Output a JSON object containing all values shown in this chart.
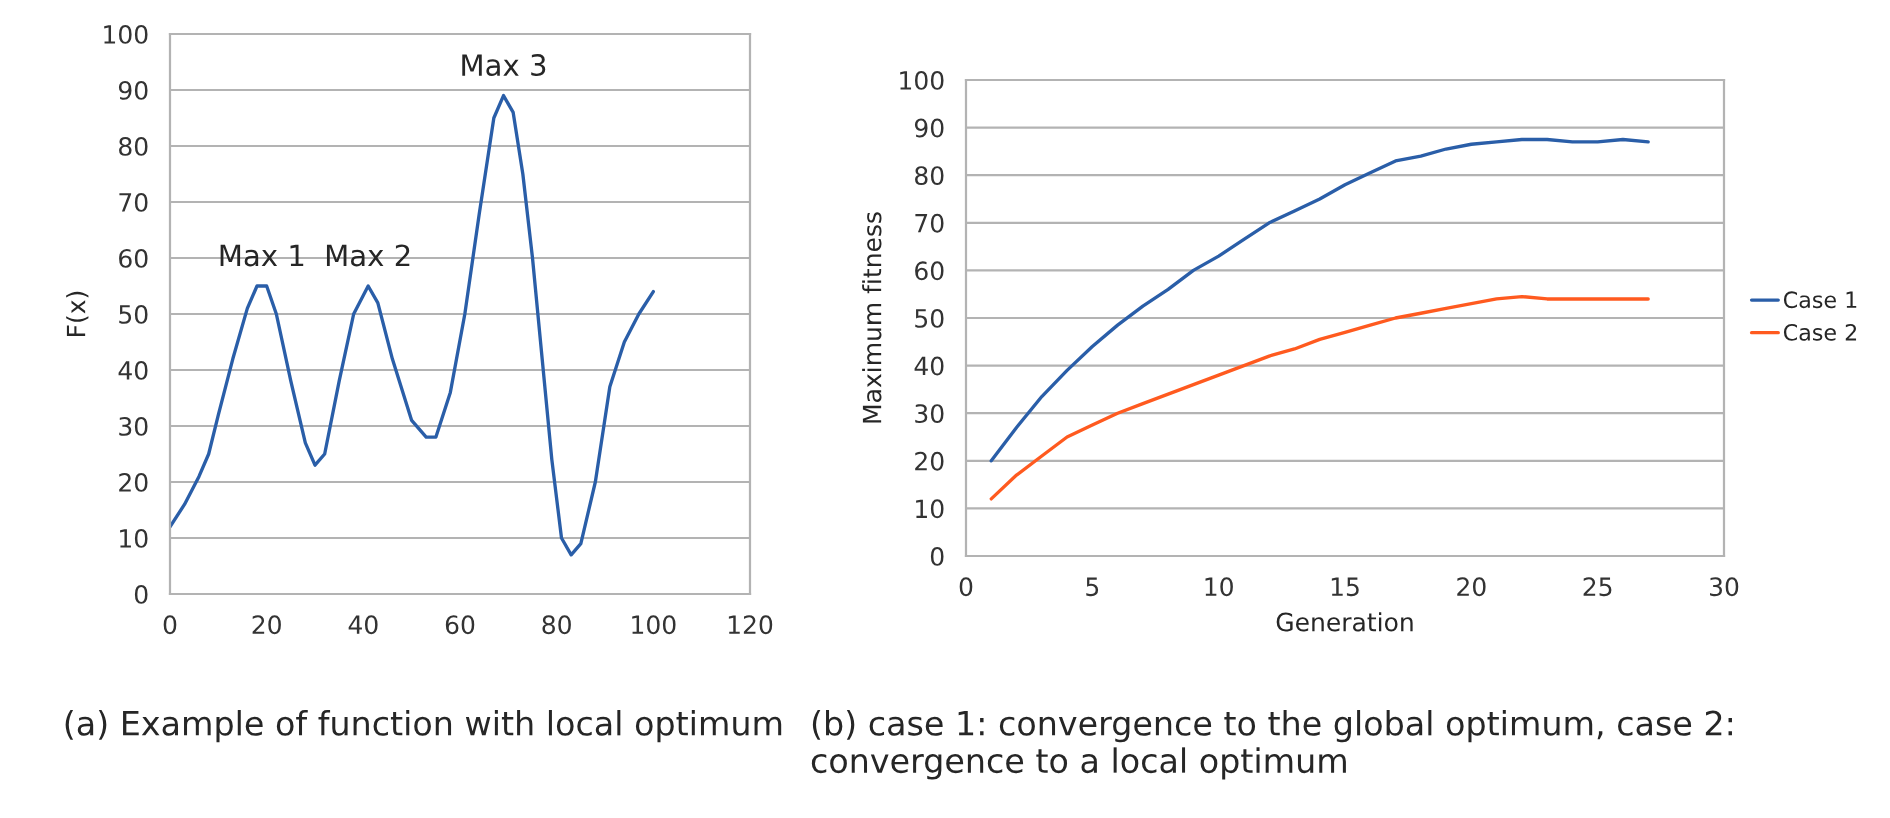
{
  "chart_data": [
    {
      "type": "line",
      "ylabel": "F(x)",
      "xlim": [
        0,
        120
      ],
      "xticks": [
        0,
        20,
        40,
        60,
        80,
        100,
        120
      ],
      "ylim": [
        0,
        100
      ],
      "yticks": [
        0,
        10,
        20,
        30,
        40,
        50,
        60,
        70,
        80,
        90,
        100
      ],
      "grid": "y",
      "legend": false,
      "series": [
        {
          "color": "#2a5ea8",
          "x": [
            0,
            3,
            6,
            8,
            10,
            13,
            16,
            18,
            20,
            22,
            25,
            28,
            30,
            32,
            35,
            38,
            41,
            43,
            46,
            50,
            53,
            55,
            58,
            61,
            64,
            67,
            69,
            71,
            73,
            75,
            77,
            79,
            81,
            83,
            85,
            88,
            91,
            94,
            97,
            100
          ],
          "values": [
            12,
            16,
            21,
            25,
            32,
            42,
            51,
            55,
            55,
            50,
            38,
            27,
            23,
            25,
            38,
            50,
            55,
            52,
            42,
            31,
            28,
            28,
            36,
            50,
            68,
            85,
            89,
            86,
            75,
            60,
            42,
            24,
            10,
            7,
            9,
            20,
            37,
            45,
            50,
            54
          ]
        }
      ],
      "annotations": [
        {
          "text": "Max 1",
          "x": 19,
          "y": 55
        },
        {
          "text": "Max 2",
          "x": 41,
          "y": 55
        },
        {
          "text": "Max 3",
          "x": 69,
          "y": 89
        },
        "(a) Example of function with local optimum"
      ]
    },
    {
      "type": "line",
      "xlabel": "Generation",
      "ylabel": "Maximum fitness",
      "xlim": [
        0,
        30
      ],
      "xticks": [
        0,
        5,
        10,
        15,
        20,
        25,
        30
      ],
      "ylim": [
        0,
        100
      ],
      "yticks": [
        0,
        10,
        20,
        30,
        40,
        50,
        60,
        70,
        80,
        90,
        100
      ],
      "grid": "y",
      "legend": "right",
      "x": [
        1,
        2,
        3,
        4,
        5,
        6,
        7,
        8,
        9,
        10,
        11,
        12,
        13,
        14,
        15,
        16,
        17,
        18,
        19,
        20,
        21,
        22,
        23,
        24,
        25,
        26,
        27
      ],
      "series": [
        {
          "name": "Case 1",
          "color": "#2a5ea8",
          "values": [
            20,
            27,
            33.5,
            39,
            44,
            48.5,
            52.5,
            56,
            60,
            63,
            66.5,
            70,
            72.5,
            75,
            78,
            80.5,
            83,
            84,
            85.5,
            86.5,
            87,
            87.5,
            87.5,
            87,
            87,
            87.5,
            87
          ]
        },
        {
          "name": "Case 2",
          "color": "#ff5a1f",
          "values": [
            12,
            17,
            21,
            25,
            27.5,
            30,
            32,
            34,
            36,
            38,
            40,
            42,
            43.5,
            45.5,
            47,
            48.5,
            50,
            51,
            52,
            53,
            54,
            54.5,
            54,
            54,
            54,
            54,
            54
          ]
        }
      ],
      "annotations": [
        "(b) case 1: convergence to the global optimum, case 2: convergence to a local optimum"
      ]
    }
  ]
}
